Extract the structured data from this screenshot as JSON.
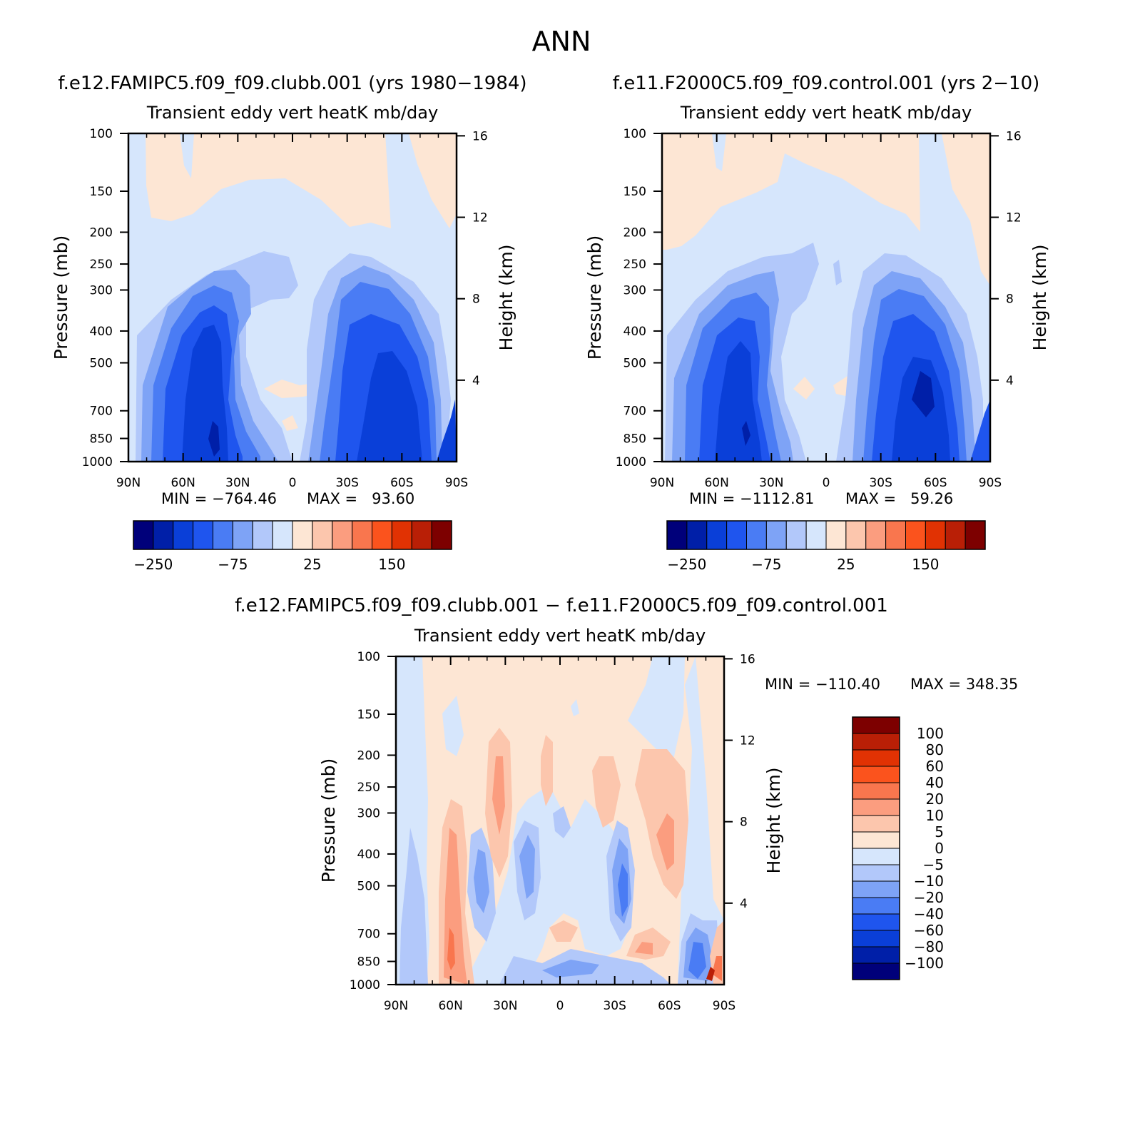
{
  "figure": {
    "title": "ANN"
  },
  "chart_data": [
    {
      "type": "heatmap",
      "case_title": "f.e12.FAMIPC5.f09_f09.clubb.001 (yrs 1980−1984)",
      "subtitle": "Transient eddy vert heatK mb/day",
      "ylabel": "Pressure (mb)",
      "y2label": "Height (km)",
      "x_ticks": [
        "90N",
        "60N",
        "30N",
        "0",
        "30S",
        "60S",
        "90S"
      ],
      "y_ticks": [
        100,
        150,
        200,
        250,
        300,
        400,
        500,
        700,
        850,
        1000
      ],
      "y2_ticks": [
        16,
        12,
        8,
        4
      ],
      "min_label": "MIN = −764.46",
      "max_label": "MAX =   93.60",
      "colorbar_labels": [
        "−250",
        "−75",
        "25",
        "150"
      ]
    },
    {
      "type": "heatmap",
      "case_title": "f.e11.F2000C5.f09_f09.control.001 (yrs 2−10)",
      "subtitle": "Transient eddy vert heatK mb/day",
      "ylabel": "Pressure (mb)",
      "y2label": "Height (km)",
      "x_ticks": [
        "90N",
        "60N",
        "30N",
        "0",
        "30S",
        "60S",
        "90S"
      ],
      "y_ticks": [
        100,
        150,
        200,
        250,
        300,
        400,
        500,
        700,
        850,
        1000
      ],
      "y2_ticks": [
        16,
        12,
        8,
        4
      ],
      "min_label": "MIN = −1112.81",
      "max_label": "MAX =   59.26",
      "colorbar_labels": [
        "−250",
        "−75",
        "25",
        "150"
      ]
    },
    {
      "type": "heatmap",
      "case_title": "f.e12.FAMIPC5.f09_f09.clubb.001 − f.e11.F2000C5.f09_f09.control.001",
      "subtitle": "Transient eddy vert heatK mb/day",
      "ylabel": "Pressure (mb)",
      "y2label": "Height (km)",
      "x_ticks": [
        "90N",
        "60N",
        "30N",
        "0",
        "30S",
        "60S",
        "90S"
      ],
      "y_ticks": [
        100,
        150,
        200,
        250,
        300,
        400,
        500,
        700,
        850,
        1000
      ],
      "y2_ticks": [
        16,
        12,
        8,
        4
      ],
      "min_label": "MIN = −110.40",
      "max_label": "MAX = 348.35",
      "colorbar_labels": [
        "100",
        "80",
        "60",
        "40",
        "20",
        "10",
        "5",
        "0",
        "−5",
        "−10",
        "−20",
        "−40",
        "−60",
        "−80",
        "−100"
      ]
    }
  ],
  "colors": {
    "palette": [
      "#00007a",
      "#001fa8",
      "#0a3fd8",
      "#1f55ee",
      "#4a7cf4",
      "#7ea3f6",
      "#b2c8fa",
      "#d6e6fc",
      "#fde6d4",
      "#fcc6ad",
      "#fb9d7f",
      "#f9764e",
      "#fb531d",
      "#e13203",
      "#b91f06",
      "#7d0000"
    ],
    "diff_palette": [
      "#7d0000",
      "#b91f06",
      "#e13203",
      "#fb531d",
      "#f9764e",
      "#fb9d7f",
      "#fcc6ad",
      "#fde6d4",
      "#d6e6fc",
      "#b2c8fa",
      "#7ea3f6",
      "#4a7cf4",
      "#1f55ee",
      "#0a3fd8",
      "#001fa8",
      "#00007a"
    ]
  }
}
